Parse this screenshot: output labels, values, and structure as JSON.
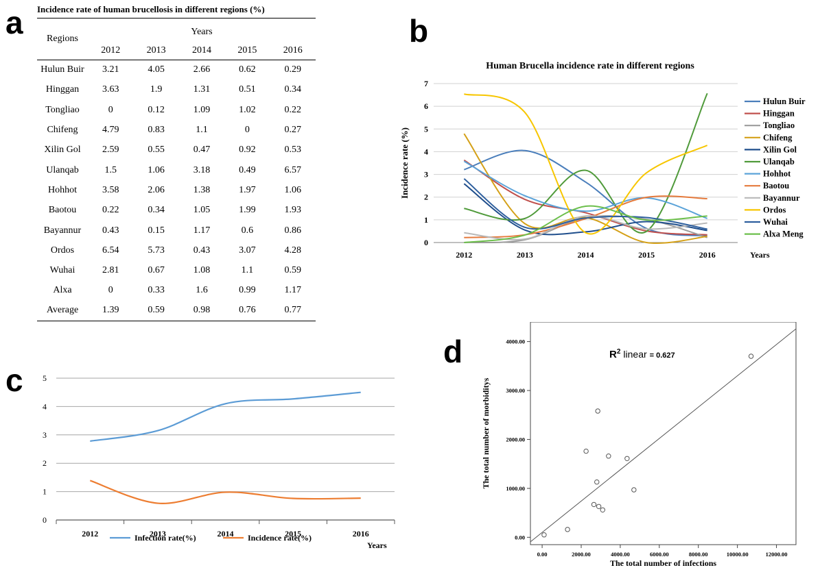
{
  "panels": {
    "a": "a",
    "b": "b",
    "c": "c",
    "d": "d"
  },
  "table": {
    "title": "Incidence rate of human brucellosis in different regions (%)",
    "row_header": "Regions",
    "group_header": "Years",
    "years": [
      "2012",
      "2013",
      "2014",
      "2015",
      "2016"
    ],
    "rows": [
      {
        "region": "Hulun Buir",
        "values": [
          "3.21",
          "4.05",
          "2.66",
          "0.62",
          "0.29"
        ]
      },
      {
        "region": "Hinggan",
        "values": [
          "3.63",
          "1.9",
          "1.31",
          "0.51",
          "0.34"
        ]
      },
      {
        "region": "Tongliao",
        "values": [
          "0",
          "0.12",
          "1.09",
          "1.02",
          "0.22"
        ]
      },
      {
        "region": "Chifeng",
        "values": [
          "4.79",
          "0.83",
          "1.1",
          "0",
          "0.27"
        ]
      },
      {
        "region": "Xilin Gol",
        "values": [
          "2.59",
          "0.55",
          "0.47",
          "0.92",
          "0.53"
        ]
      },
      {
        "region": "Ulanqab",
        "values": [
          "1.5",
          "1.06",
          "3.18",
          "0.49",
          "6.57"
        ]
      },
      {
        "region": "Hohhot",
        "values": [
          "3.58",
          "2.06",
          "1.38",
          "1.97",
          "1.06"
        ]
      },
      {
        "region": "Baotou",
        "values": [
          "0.22",
          "0.34",
          "1.05",
          "1.99",
          "1.93"
        ]
      },
      {
        "region": "Bayannur",
        "values": [
          "0.43",
          "0.15",
          "1.17",
          "0.6",
          "0.86"
        ]
      },
      {
        "region": "Ordos",
        "values": [
          "6.54",
          "5.73",
          "0.43",
          "3.07",
          "4.28"
        ]
      },
      {
        "region": "Wuhai",
        "values": [
          "2.81",
          "0.67",
          "1.08",
          "1.1",
          "0.59"
        ]
      },
      {
        "region": "Alxa",
        "values": [
          "0",
          "0.33",
          "1.6",
          "0.99",
          "1.17"
        ]
      },
      {
        "region": "Average",
        "values": [
          "1.39",
          "0.59",
          "0.98",
          "0.76",
          "0.77"
        ]
      }
    ]
  },
  "chart_data": [
    {
      "id": "b",
      "type": "line",
      "title": "Human Brucella incidence rate in different regions",
      "xlabel": "Years",
      "ylabel": "Incidence rate (%)",
      "categories": [
        "2012",
        "2013",
        "2014",
        "2015",
        "2016"
      ],
      "ylim": [
        0,
        7
      ],
      "yticks": [
        "0",
        "1",
        "2",
        "3",
        "4",
        "5",
        "6",
        "7"
      ],
      "grid": true,
      "legend": "right",
      "series": [
        {
          "name": "Hulun Buir",
          "color": "#4a7ebb",
          "values": [
            3.21,
            4.05,
            2.66,
            0.62,
            0.29
          ]
        },
        {
          "name": "Hinggan",
          "color": "#c0504d",
          "values": [
            3.63,
            1.9,
            1.31,
            0.51,
            0.34
          ]
        },
        {
          "name": "Tongliao",
          "color": "#9b9b9b",
          "values": [
            0,
            0.12,
            1.09,
            1.02,
            0.22
          ]
        },
        {
          "name": "Chifeng",
          "color": "#d4a017",
          "values": [
            4.79,
            0.83,
            1.1,
            0,
            0.27
          ]
        },
        {
          "name": "Xilin Gol",
          "color": "#1f4e8c",
          "values": [
            2.59,
            0.55,
            0.47,
            0.92,
            0.53
          ]
        },
        {
          "name": "Ulanqab",
          "color": "#4f9a3a",
          "values": [
            1.5,
            1.06,
            3.18,
            0.49,
            6.57
          ]
        },
        {
          "name": "Hohhot",
          "color": "#5ba3d9",
          "values": [
            3.58,
            2.06,
            1.38,
            1.97,
            1.06
          ]
        },
        {
          "name": "Baotou",
          "color": "#e57a3c",
          "values": [
            0.22,
            0.34,
            1.05,
            1.99,
            1.93
          ]
        },
        {
          "name": "Bayannur",
          "color": "#b8b8b8",
          "values": [
            0.43,
            0.15,
            1.17,
            0.6,
            0.86
          ]
        },
        {
          "name": "Ordos",
          "color": "#f7c600",
          "values": [
            6.54,
            5.73,
            0.43,
            3.07,
            4.28
          ]
        },
        {
          "name": "Wuhai",
          "color": "#2e5f9e",
          "values": [
            2.81,
            0.67,
            1.08,
            1.1,
            0.59
          ]
        },
        {
          "name": "Alxa Meng",
          "color": "#6cbf4b",
          "values": [
            0,
            0.33,
            1.6,
            0.99,
            1.17
          ]
        }
      ]
    },
    {
      "id": "c",
      "type": "line",
      "title": "",
      "xlabel": "Years",
      "ylabel": "",
      "categories": [
        "2012",
        "2013",
        "2014",
        "2015",
        "2016"
      ],
      "ylim": [
        0,
        5
      ],
      "yticks": [
        "0",
        "1",
        "2",
        "3",
        "4",
        "5"
      ],
      "grid": true,
      "legend": "bottom",
      "series": [
        {
          "name": "Infection rate(%)",
          "color": "#5b9bd5",
          "values": [
            2.78,
            3.15,
            4.1,
            4.27,
            4.5
          ]
        },
        {
          "name": "Incidence rate(%)",
          "color": "#ed7d31",
          "values": [
            1.39,
            0.59,
            0.98,
            0.76,
            0.77
          ]
        }
      ]
    },
    {
      "id": "d",
      "type": "scatter",
      "title": "",
      "xlabel": "The total number of infections",
      "ylabel": "The total number of morbiditys",
      "annotation_prefix": "linear",
      "annotation_value": "= 0.627",
      "r2_base": "R",
      "r2_sup": "2",
      "xlim": [
        -600,
        13000
      ],
      "ylim": [
        -150,
        4400
      ],
      "xticks": [
        {
          "v": 0,
          "label": "0.00"
        },
        {
          "v": 2000,
          "label": "2000.00"
        },
        {
          "v": 4000,
          "label": "4000.00"
        },
        {
          "v": 6000,
          "label": "6000.00"
        },
        {
          "v": 8000,
          "label": "8000.00"
        },
        {
          "v": 10000,
          "label": "10000.00"
        },
        {
          "v": 12000,
          "label": "12000.00"
        }
      ],
      "yticks": [
        {
          "v": 0,
          "label": "0.00"
        },
        {
          "v": 1000,
          "label": "1000.00"
        },
        {
          "v": 2000,
          "label": "2000.00"
        },
        {
          "v": 3000,
          "label": "3000.00"
        },
        {
          "v": 4000,
          "label": "4000.00"
        }
      ],
      "points": [
        {
          "x": 100,
          "y": 50
        },
        {
          "x": 1300,
          "y": 160
        },
        {
          "x": 2250,
          "y": 1760
        },
        {
          "x": 2650,
          "y": 670
        },
        {
          "x": 2800,
          "y": 1130
        },
        {
          "x": 2850,
          "y": 2580
        },
        {
          "x": 2900,
          "y": 630
        },
        {
          "x": 3100,
          "y": 560
        },
        {
          "x": 3400,
          "y": 1660
        },
        {
          "x": 4350,
          "y": 1610
        },
        {
          "x": 4700,
          "y": 970
        },
        {
          "x": 10700,
          "y": 3700
        }
      ],
      "fit": {
        "slope": 0.32,
        "intercept": 100
      }
    }
  ]
}
